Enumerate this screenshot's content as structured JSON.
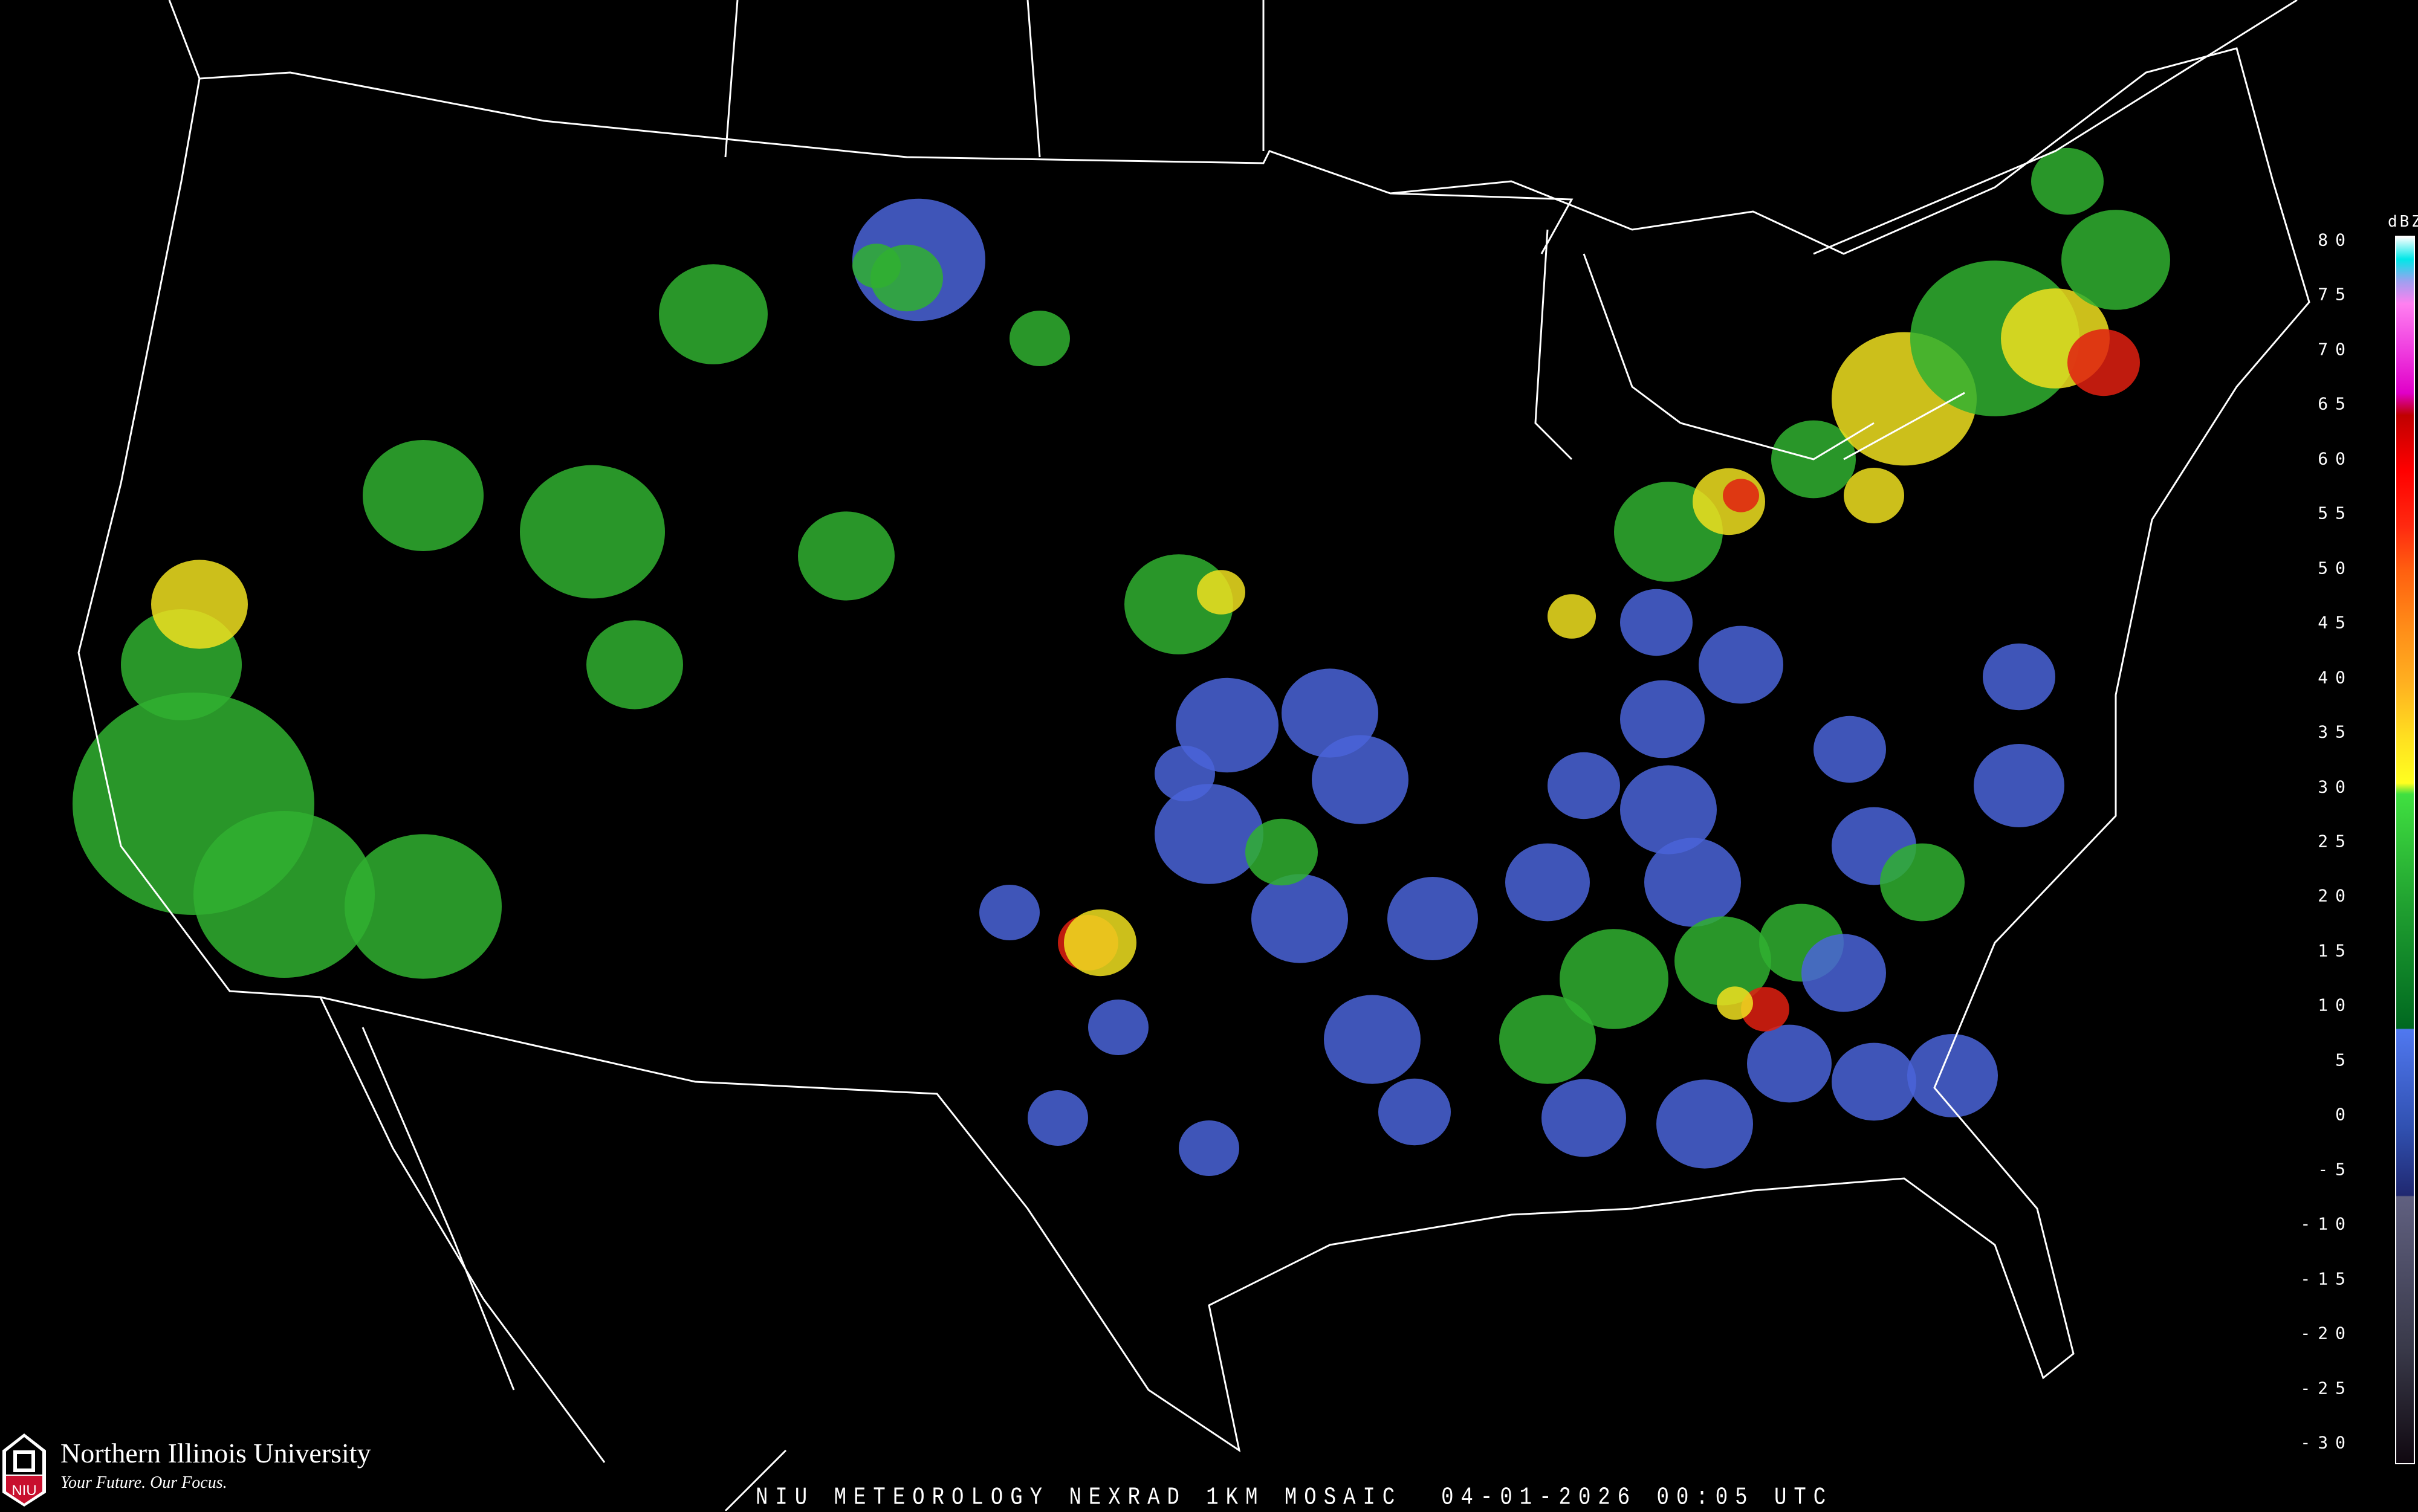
{
  "map": {
    "caption": "NIU METEOROLOGY NEXRAD 1KM MOSAIC  04-01-2026 00:05 UTC",
    "background_color": "#000000",
    "boundary_color": "#ffffff",
    "road_color": "#8b4513"
  },
  "branding": {
    "university": "Northern Illinois University",
    "tagline": "Your Future. Our Focus.",
    "logo_text": "NIU",
    "logo_color": "#c8102e"
  },
  "legend": {
    "unit": "dBZ",
    "range": [
      -30,
      80
    ],
    "ticks": [
      "80",
      "75",
      "70",
      "65",
      "60",
      "55",
      "50",
      "45",
      "40",
      "35",
      "30",
      "25",
      "20",
      "15",
      "10",
      "5",
      "0",
      "-5",
      "-10",
      "-15",
      "-20",
      "-25",
      "-30"
    ],
    "color_scale": [
      {
        "dbz": 80,
        "color": "#ffffff"
      },
      {
        "dbz": 78,
        "color": "#00e8e8"
      },
      {
        "dbz": 76,
        "color": "#a0a0f0"
      },
      {
        "dbz": 74,
        "color": "#ff80f0"
      },
      {
        "dbz": 70,
        "color": "#f040e0"
      },
      {
        "dbz": 66,
        "color": "#e000c8"
      },
      {
        "dbz": 64,
        "color": "#c00000"
      },
      {
        "dbz": 59,
        "color": "#ff0000"
      },
      {
        "dbz": 54,
        "color": "#ff2a10"
      },
      {
        "dbz": 50,
        "color": "#ff6010"
      },
      {
        "dbz": 45,
        "color": "#ff8c18"
      },
      {
        "dbz": 40,
        "color": "#ffb020"
      },
      {
        "dbz": 35,
        "color": "#ffe020"
      },
      {
        "dbz": 31,
        "color": "#ffff20"
      },
      {
        "dbz": 30,
        "color": "#40e040"
      },
      {
        "dbz": 20,
        "color": "#20a030"
      },
      {
        "dbz": 9,
        "color": "#006820"
      },
      {
        "dbz": 8.9,
        "color": "#5078f0"
      },
      {
        "dbz": 0,
        "color": "#3050b0"
      },
      {
        "dbz": -6,
        "color": "#202870"
      },
      {
        "dbz": -6.1,
        "color": "#606080"
      },
      {
        "dbz": -20,
        "color": "#383848"
      },
      {
        "dbz": -30,
        "color": "#100810"
      }
    ]
  }
}
